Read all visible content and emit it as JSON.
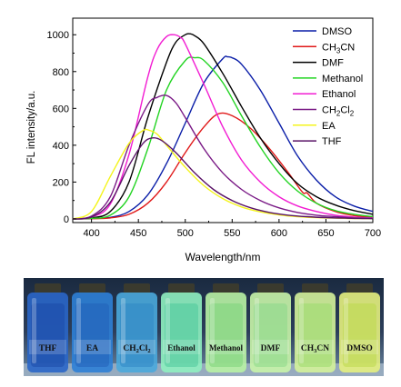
{
  "chart_data": {
    "type": "line",
    "xlabel": "Wavelength/nm",
    "ylabel": "FL intensity/a.u.",
    "xlim": [
      380,
      700
    ],
    "ylim": [
      -20,
      1090
    ],
    "xticks": [
      400,
      450,
      500,
      550,
      600,
      650,
      700
    ],
    "yticks": [
      0,
      200,
      400,
      600,
      800,
      1000
    ],
    "grid": false,
    "legend_position": "top-right",
    "series": [
      {
        "name": "DMSO",
        "legend_main": "DMSO",
        "legend_sub": "",
        "legend_tail": "",
        "color": "#0a1ea8",
        "x": [
          380,
          400,
          420,
          440,
          460,
          480,
          500,
          520,
          540,
          545,
          550,
          560,
          580,
          600,
          620,
          640,
          660,
          680,
          700
        ],
        "y": [
          0,
          2,
          8,
          40,
          130,
          300,
          520,
          740,
          870,
          880,
          875,
          840,
          700,
          520,
          340,
          210,
          120,
          70,
          40
        ]
      },
      {
        "name": "CH3CN",
        "legend_main": "CH",
        "legend_sub": "3",
        "legend_tail": "CN",
        "color": "#e01818",
        "x": [
          380,
          400,
          420,
          440,
          460,
          480,
          500,
          520,
          535,
          550,
          570,
          590,
          610,
          625,
          630,
          640,
          660,
          680,
          700
        ],
        "y": [
          0,
          1,
          5,
          25,
          85,
          200,
          360,
          500,
          570,
          560,
          490,
          380,
          250,
          145,
          140,
          85,
          40,
          18,
          8
        ]
      },
      {
        "name": "DMF",
        "legend_main": "DMF",
        "legend_sub": "",
        "legend_tail": "",
        "color": "#000000",
        "x": [
          380,
          400,
          420,
          440,
          460,
          480,
          490,
          500,
          505,
          510,
          520,
          540,
          560,
          580,
          600,
          620,
          640,
          660,
          680,
          700
        ],
        "y": [
          0,
          5,
          40,
          200,
          550,
          850,
          960,
          1000,
          1005,
          995,
          950,
          790,
          610,
          440,
          300,
          190,
          120,
          75,
          45,
          25
        ]
      },
      {
        "name": "Methanol",
        "legend_main": "Methanol",
        "legend_sub": "",
        "legend_tail": "",
        "color": "#22d422",
        "x": [
          380,
          400,
          420,
          440,
          460,
          480,
          500,
          510,
          520,
          540,
          560,
          580,
          600,
          620,
          640,
          660,
          680,
          700
        ],
        "y": [
          0,
          3,
          20,
          120,
          380,
          700,
          860,
          875,
          860,
          740,
          560,
          390,
          250,
          150,
          85,
          45,
          25,
          12
        ]
      },
      {
        "name": "Ethanol",
        "legend_main": "Ethanol",
        "legend_sub": "",
        "legend_tail": "",
        "color": "#f21cd2",
        "x": [
          380,
          400,
          420,
          440,
          460,
          470,
          480,
          488,
          495,
          500,
          520,
          540,
          560,
          580,
          600,
          620,
          640,
          660,
          680,
          700
        ],
        "y": [
          0,
          10,
          80,
          350,
          770,
          920,
          990,
          1000,
          985,
          950,
          730,
          500,
          320,
          200,
          120,
          70,
          40,
          20,
          10,
          5
        ]
      },
      {
        "name": "CH2Cl2",
        "legend_main": "CH",
        "legend_sub": "2",
        "legend_tail": "Cl2",
        "color": "#7a1a86",
        "x": [
          380,
          400,
          420,
          440,
          460,
          470,
          480,
          490,
          500,
          520,
          540,
          560,
          580,
          600,
          620,
          640,
          660,
          680,
          700
        ],
        "y": [
          0,
          15,
          120,
          400,
          620,
          660,
          670,
          630,
          550,
          380,
          250,
          160,
          100,
          60,
          35,
          20,
          12,
          6,
          3
        ]
      },
      {
        "name": "EA",
        "legend_main": "EA",
        "legend_sub": "",
        "legend_tail": "",
        "color": "#f4f41c",
        "x": [
          380,
          400,
          420,
          440,
          455,
          462,
          470,
          480,
          500,
          520,
          540,
          560,
          580,
          600,
          620,
          640,
          660,
          680,
          700
        ],
        "y": [
          0,
          40,
          230,
          410,
          480,
          480,
          460,
          400,
          280,
          180,
          110,
          65,
          38,
          22,
          12,
          7,
          4,
          2,
          1
        ]
      },
      {
        "name": "THF",
        "legend_main": "THF",
        "legend_sub": "",
        "legend_tail": "",
        "color": "#5a1468",
        "x": [
          380,
          400,
          420,
          440,
          455,
          465,
          475,
          490,
          510,
          530,
          550,
          570,
          590,
          610,
          630,
          650,
          670,
          690,
          700
        ],
        "y": [
          0,
          10,
          90,
          290,
          410,
          440,
          425,
          360,
          250,
          160,
          100,
          60,
          35,
          20,
          12,
          7,
          4,
          2,
          1
        ]
      }
    ]
  },
  "photo": {
    "vials": [
      {
        "label_main": "THF",
        "label_sub": "",
        "label_tail": "",
        "glow": "#2a66c8",
        "liquid": "#1c4aa8"
      },
      {
        "label_main": "EA",
        "label_sub": "",
        "label_tail": "",
        "glow": "#2e80d6",
        "liquid": "#2260b8"
      },
      {
        "label_main": "CH",
        "label_sub": "2",
        "label_tail": "Cl2",
        "glow": "#4aa8dc",
        "liquid": "#2f86c4"
      },
      {
        "label_main": "Ethanol",
        "label_sub": "",
        "label_tail": "",
        "glow": "#8ff0c0",
        "liquid": "#4cc89a"
      },
      {
        "label_main": "Methanol",
        "label_sub": "",
        "label_tail": "",
        "glow": "#b8f2a4",
        "liquid": "#7cd47a"
      },
      {
        "label_main": "DMF",
        "label_sub": "",
        "label_tail": "",
        "glow": "#c8f4a8",
        "liquid": "#8ad888"
      },
      {
        "label_main": "CH",
        "label_sub": "3",
        "label_tail": "CN",
        "glow": "#d4f29a",
        "liquid": "#9ada6c"
      },
      {
        "label_main": "DMSO",
        "label_sub": "",
        "label_tail": "",
        "glow": "#e4f07e",
        "liquid": "#bcd84c"
      }
    ]
  }
}
